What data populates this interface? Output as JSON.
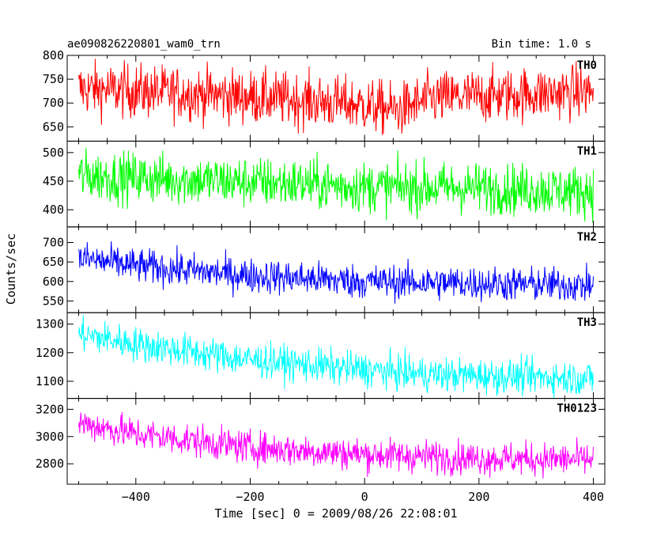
{
  "header": {
    "object_name": "ae090826220801_wam0_trn",
    "bin_time": "Bin time: 1.0 s"
  },
  "chart_data": {
    "type": "line",
    "title": "ae090826220801_wam0_trn",
    "xlabel": "Time [sec] 0 = 2009/08/26 22:08:01",
    "ylabel": "Counts/sec",
    "xlim": [
      -520,
      420
    ],
    "x_range": [
      -500,
      400
    ],
    "x_step": 1,
    "x_ticks": [
      -400,
      -200,
      0,
      200,
      400
    ],
    "x_tick_labels": [
      "−400",
      "−200",
      "0",
      "200",
      "400"
    ],
    "grid": false,
    "legend": "none",
    "series": [
      {
        "name": "TH0",
        "color": "#ff0000",
        "ylim": [
          620,
          800
        ],
        "y_ticks": [
          650,
          700,
          750,
          800
        ],
        "y_tick_labels": [
          "650",
          "700",
          "750",
          "800"
        ],
        "trend": [
          [
            -500,
            730
          ],
          [
            -300,
            720
          ],
          [
            -100,
            705
          ],
          [
            0,
            695
          ],
          [
            60,
            685
          ],
          [
            120,
            710
          ],
          [
            400,
            725
          ]
        ],
        "noise": 28
      },
      {
        "name": "TH1",
        "color": "#00ff00",
        "ylim": [
          370,
          520
        ],
        "y_ticks": [
          400,
          450,
          500
        ],
        "y_tick_labels": [
          "400",
          "450",
          "500"
        ],
        "trend": [
          [
            -500,
            460
          ],
          [
            -300,
            452
          ],
          [
            -100,
            445
          ],
          [
            0,
            440
          ],
          [
            200,
            438
          ],
          [
            400,
            432
          ]
        ],
        "noise": 22
      },
      {
        "name": "TH2",
        "color": "#0000ff",
        "ylim": [
          520,
          740
        ],
        "y_ticks": [
          550,
          600,
          650,
          700
        ],
        "y_tick_labels": [
          "550",
          "600",
          "650",
          "700"
        ],
        "trend": [
          [
            -500,
            660
          ],
          [
            -400,
            640
          ],
          [
            -200,
            615
          ],
          [
            0,
            600
          ],
          [
            200,
            595
          ],
          [
            400,
            590
          ]
        ],
        "noise": 22
      },
      {
        "name": "TH3",
        "color": "#00ffff",
        "ylim": [
          1040,
          1340
        ],
        "y_ticks": [
          1100,
          1200,
          1300
        ],
        "y_tick_labels": [
          "1100",
          "1200",
          "1300"
        ],
        "trend": [
          [
            -500,
            1265
          ],
          [
            -400,
            1230
          ],
          [
            -200,
            1175
          ],
          [
            0,
            1140
          ],
          [
            100,
            1125
          ],
          [
            200,
            1120
          ],
          [
            400,
            1110
          ]
        ],
        "noise": 30
      },
      {
        "name": "TH0123",
        "color": "#ff00ff",
        "ylim": [
          2650,
          3280
        ],
        "y_ticks": [
          2800,
          3000,
          3200
        ],
        "y_tick_labels": [
          "2800",
          "3000",
          "3200"
        ],
        "trend": [
          [
            -500,
            3100
          ],
          [
            -400,
            3020
          ],
          [
            -200,
            2920
          ],
          [
            0,
            2870
          ],
          [
            200,
            2840
          ],
          [
            400,
            2830
          ]
        ],
        "noise": 60
      }
    ]
  }
}
